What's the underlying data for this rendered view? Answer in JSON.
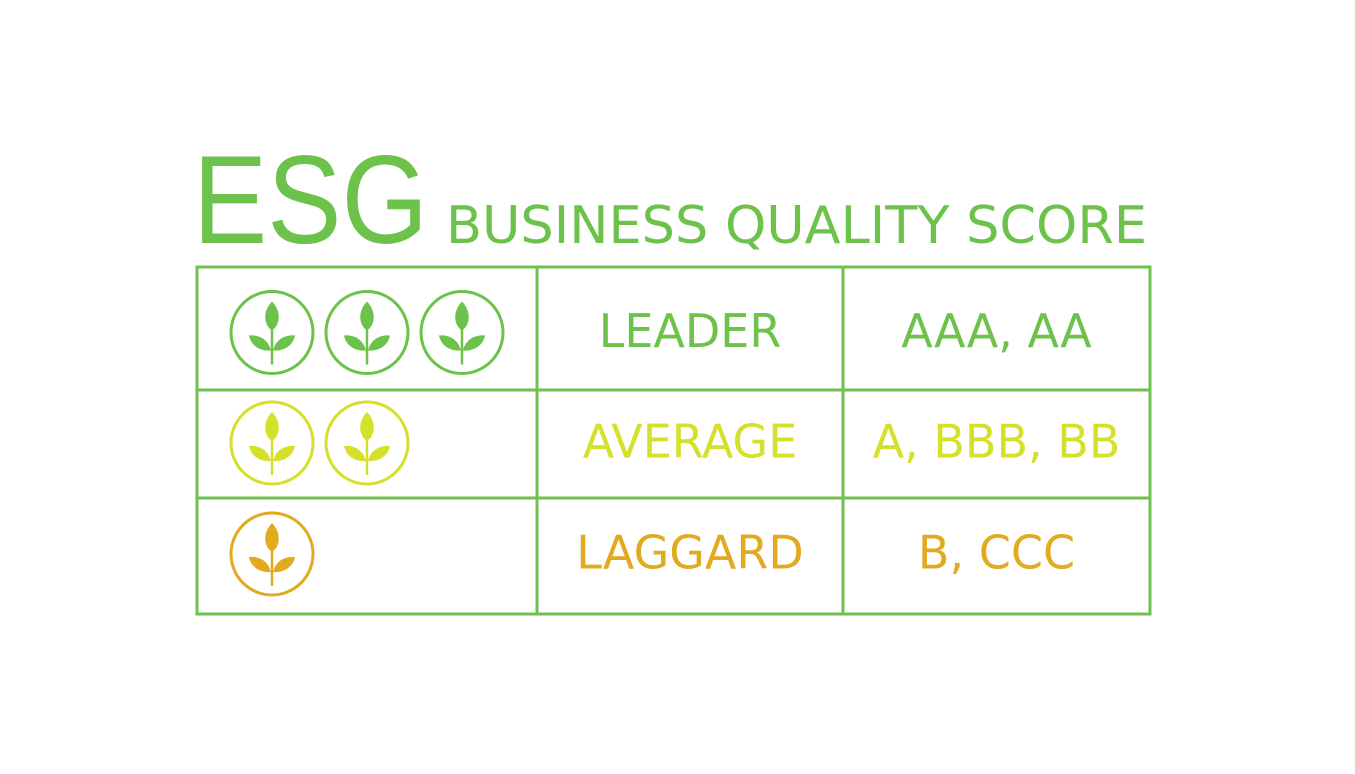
{
  "header": {
    "title": "ESG",
    "subtitle": "BUSINESS QUALITY SCORE",
    "color": "#6cc24a"
  },
  "table": {
    "border_color": "#6cc24a",
    "rows": [
      {
        "icons": 3,
        "label": "LEADER",
        "ratings": "AAA, AA",
        "color": "#6cc24a"
      },
      {
        "icons": 2,
        "label": "AVERAGE",
        "ratings": "A, BBB, BB",
        "color": "#d4e02a"
      },
      {
        "icons": 1,
        "label": "LAGGARD",
        "ratings": "B, CCC",
        "color": "#e2aa1f"
      }
    ]
  }
}
